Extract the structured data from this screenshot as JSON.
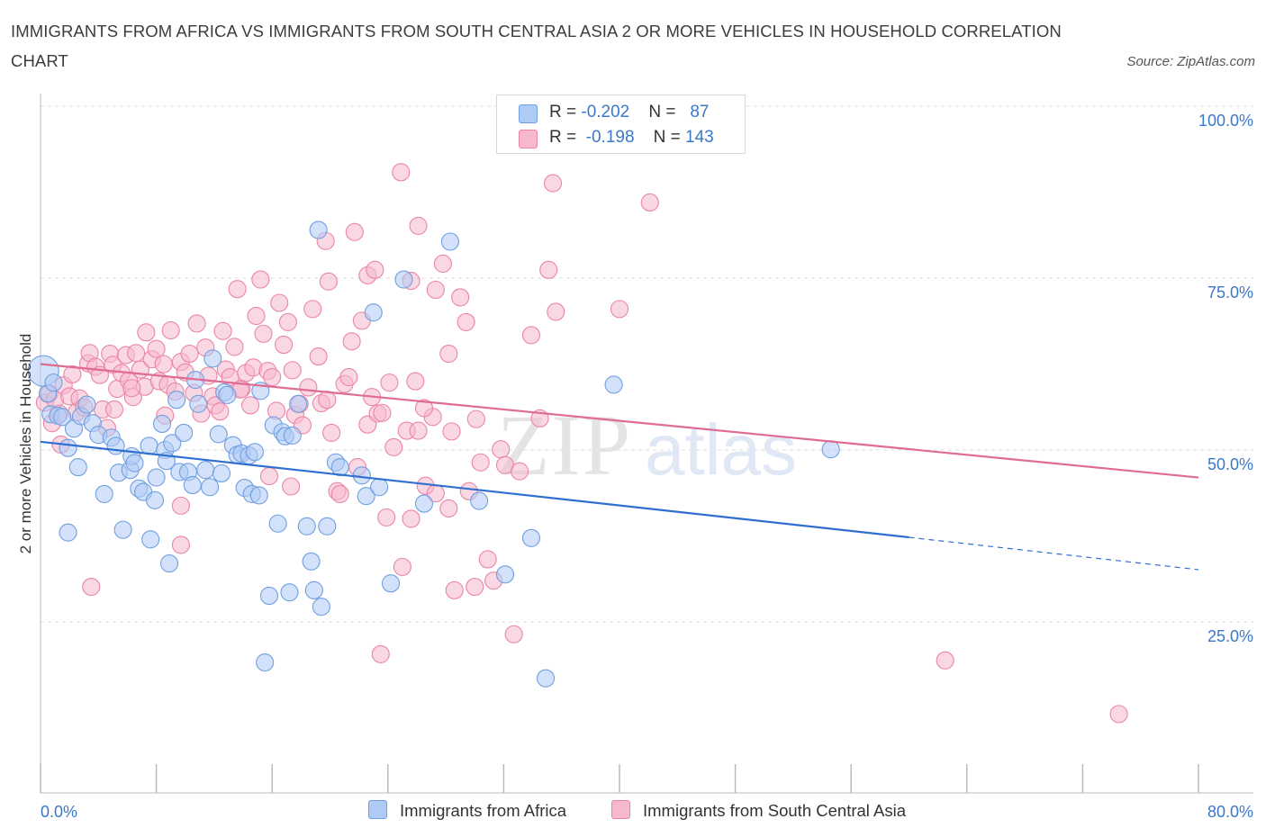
{
  "title": "IMMIGRANTS FROM AFRICA VS IMMIGRANTS FROM SOUTH CENTRAL ASIA 2 OR MORE VEHICLES IN HOUSEHOLD CORRELATION CHART",
  "source": "Source: ZipAtlas.com",
  "watermark": {
    "zip": "ZIP",
    "atlas": "atlas"
  },
  "legend": {
    "rows": [
      {
        "r_label": "R = ",
        "r_value": "-0.202",
        "n_label": "N = ",
        "n_value": "87",
        "color": "#aecbf5"
      },
      {
        "r_label": "R = ",
        "r_value": "-0.198",
        "n_label": "N = ",
        "n_value": "143",
        "color": "#f5b8cc"
      }
    ]
  },
  "chart_data": {
    "type": "scatter",
    "title": "IMMIGRANTS FROM AFRICA VS IMMIGRANTS FROM SOUTH CENTRAL ASIA 2 OR MORE VEHICLES IN HOUSEHOLD CORRELATION CHART",
    "xlabel": "",
    "ylabel": "2 or more Vehicles in Household",
    "xlim": [
      0,
      80
    ],
    "ylim": [
      0,
      100
    ],
    "x_tick_labels": [
      "0.0%",
      "80.0%"
    ],
    "y_ticks": [
      25,
      50,
      75,
      100
    ],
    "y_tick_labels": [
      "25.0%",
      "50.0%",
      "75.0%",
      "100.0%"
    ],
    "grid": true,
    "legend_position": "top-center",
    "series": [
      {
        "name": "Immigrants from Africa",
        "color": "#6f9fe0",
        "fill": "#aecbf5",
        "line_color": "#2f6fd0",
        "trend": {
          "x0": 0,
          "y0": 51.2,
          "x1": 60,
          "y1": 37.3,
          "x_end_dashed": 80,
          "y_end_dashed": 32.6
        },
        "points": [
          [
            0.2,
            61.5
          ],
          [
            0.5,
            58.2
          ],
          [
            0.7,
            55.2
          ],
          [
            0.9,
            59.8
          ],
          [
            1.2,
            55.0
          ],
          [
            1.5,
            54.8
          ],
          [
            1.9,
            50.3
          ],
          [
            2.3,
            53.1
          ],
          [
            2.6,
            47.5
          ],
          [
            1.9,
            38.0
          ],
          [
            2.8,
            54.9
          ],
          [
            3.2,
            56.6
          ],
          [
            3.6,
            53.9
          ],
          [
            4.0,
            52.2
          ],
          [
            4.4,
            43.6
          ],
          [
            4.9,
            51.8
          ],
          [
            5.2,
            50.6
          ],
          [
            5.4,
            46.7
          ],
          [
            5.7,
            38.4
          ],
          [
            6.2,
            47.1
          ],
          [
            6.3,
            49.1
          ],
          [
            6.5,
            48.1
          ],
          [
            6.8,
            44.4
          ],
          [
            7.1,
            43.9
          ],
          [
            7.5,
            50.6
          ],
          [
            7.6,
            37.0
          ],
          [
            7.9,
            42.7
          ],
          [
            8.0,
            46.0
          ],
          [
            8.4,
            53.8
          ],
          [
            8.6,
            50.0
          ],
          [
            8.7,
            48.4
          ],
          [
            8.9,
            33.5
          ],
          [
            9.1,
            51.0
          ],
          [
            9.4,
            57.3
          ],
          [
            9.6,
            46.8
          ],
          [
            9.9,
            52.5
          ],
          [
            10.2,
            46.8
          ],
          [
            10.5,
            44.9
          ],
          [
            10.7,
            60.2
          ],
          [
            10.9,
            56.7
          ],
          [
            11.4,
            47.1
          ],
          [
            11.7,
            44.6
          ],
          [
            11.9,
            63.3
          ],
          [
            12.3,
            52.3
          ],
          [
            12.5,
            46.6
          ],
          [
            12.7,
            58.4
          ],
          [
            12.9,
            58.0
          ],
          [
            13.3,
            50.7
          ],
          [
            13.6,
            49.3
          ],
          [
            13.9,
            49.5
          ],
          [
            14.1,
            44.5
          ],
          [
            14.4,
            49.2
          ],
          [
            14.6,
            43.6
          ],
          [
            14.8,
            49.7
          ],
          [
            15.1,
            43.4
          ],
          [
            15.2,
            58.6
          ],
          [
            15.5,
            19.1
          ],
          [
            15.8,
            28.8
          ],
          [
            16.1,
            53.6
          ],
          [
            16.4,
            39.3
          ],
          [
            16.7,
            52.6
          ],
          [
            16.9,
            52.0
          ],
          [
            17.2,
            29.3
          ],
          [
            17.4,
            52.1
          ],
          [
            17.8,
            56.7
          ],
          [
            18.4,
            38.9
          ],
          [
            18.7,
            33.8
          ],
          [
            18.9,
            29.6
          ],
          [
            19.4,
            27.2
          ],
          [
            19.8,
            38.9
          ],
          [
            20.4,
            48.2
          ],
          [
            20.7,
            47.5
          ],
          [
            22.2,
            46.3
          ],
          [
            22.5,
            43.3
          ],
          [
            23.0,
            70.0
          ],
          [
            23.4,
            44.6
          ],
          [
            24.2,
            30.6
          ],
          [
            25.1,
            74.8
          ],
          [
            26.5,
            42.2
          ],
          [
            28.3,
            80.3
          ],
          [
            30.3,
            42.6
          ],
          [
            32.1,
            31.9
          ],
          [
            33.9,
            37.2
          ],
          [
            34.9,
            16.8
          ],
          [
            39.6,
            59.5
          ],
          [
            19.2,
            82.0
          ],
          [
            54.6,
            50.1
          ]
        ]
      },
      {
        "name": "Immigrants from South Central Asia",
        "color": "#ea85a8",
        "fill": "#f5b8cc",
        "line_color": "#e06b93",
        "trend": {
          "x0": 0,
          "y0": 62.5,
          "x1": 80,
          "y1": 46.0
        },
        "points": [
          [
            0.3,
            56.9
          ],
          [
            0.6,
            58.2
          ],
          [
            0.8,
            53.9
          ],
          [
            1.0,
            57.3
          ],
          [
            1.3,
            55.3
          ],
          [
            1.4,
            50.8
          ],
          [
            1.6,
            59.4
          ],
          [
            2.0,
            57.8
          ],
          [
            2.2,
            61.0
          ],
          [
            2.5,
            55.5
          ],
          [
            2.7,
            57.5
          ],
          [
            3.0,
            56.2
          ],
          [
            3.3,
            62.6
          ],
          [
            3.4,
            64.1
          ],
          [
            3.8,
            62.1
          ],
          [
            4.1,
            60.9
          ],
          [
            4.3,
            55.9
          ],
          [
            4.6,
            53.2
          ],
          [
            4.8,
            64.0
          ],
          [
            5.0,
            62.4
          ],
          [
            5.3,
            58.9
          ],
          [
            5.6,
            61.2
          ],
          [
            5.9,
            63.8
          ],
          [
            6.1,
            60.1
          ],
          [
            6.4,
            57.7
          ],
          [
            6.6,
            64.1
          ],
          [
            6.9,
            61.7
          ],
          [
            7.2,
            59.2
          ],
          [
            7.3,
            67.1
          ],
          [
            7.7,
            63.2
          ],
          [
            8.0,
            64.7
          ],
          [
            8.2,
            60.0
          ],
          [
            8.5,
            62.5
          ],
          [
            8.8,
            59.5
          ],
          [
            9.0,
            67.4
          ],
          [
            9.3,
            58.5
          ],
          [
            9.7,
            62.8
          ],
          [
            10.0,
            61.3
          ],
          [
            10.3,
            64.0
          ],
          [
            10.6,
            58.3
          ],
          [
            10.8,
            68.4
          ],
          [
            11.1,
            55.3
          ],
          [
            11.4,
            64.9
          ],
          [
            11.6,
            60.8
          ],
          [
            11.9,
            57.8
          ],
          [
            12.1,
            56.5
          ],
          [
            12.4,
            55.6
          ],
          [
            12.6,
            67.3
          ],
          [
            12.8,
            61.7
          ],
          [
            13.1,
            60.6
          ],
          [
            13.4,
            65.0
          ],
          [
            13.6,
            73.4
          ],
          [
            13.9,
            58.9
          ],
          [
            14.2,
            61.2
          ],
          [
            14.5,
            56.5
          ],
          [
            14.7,
            62.0
          ],
          [
            14.9,
            69.5
          ],
          [
            15.2,
            74.8
          ],
          [
            15.4,
            66.9
          ],
          [
            15.7,
            61.5
          ],
          [
            16.0,
            60.6
          ],
          [
            16.3,
            55.7
          ],
          [
            16.5,
            71.4
          ],
          [
            16.8,
            65.3
          ],
          [
            17.1,
            68.6
          ],
          [
            17.4,
            61.6
          ],
          [
            17.6,
            55.1
          ],
          [
            17.9,
            56.7
          ],
          [
            18.1,
            53.6
          ],
          [
            18.5,
            59.1
          ],
          [
            18.8,
            70.5
          ],
          [
            19.2,
            63.6
          ],
          [
            19.4,
            56.8
          ],
          [
            19.8,
            57.3
          ],
          [
            20.1,
            52.5
          ],
          [
            20.5,
            44.0
          ],
          [
            20.7,
            43.6
          ],
          [
            21.0,
            59.6
          ],
          [
            21.3,
            60.6
          ],
          [
            21.5,
            65.8
          ],
          [
            21.9,
            47.5
          ],
          [
            22.2,
            68.8
          ],
          [
            22.6,
            53.7
          ],
          [
            22.9,
            57.7
          ],
          [
            23.3,
            55.3
          ],
          [
            23.6,
            55.4
          ],
          [
            24.1,
            59.8
          ],
          [
            24.4,
            50.4
          ],
          [
            25.0,
            33.0
          ],
          [
            25.3,
            52.8
          ],
          [
            25.6,
            74.6
          ],
          [
            25.9,
            60.0
          ],
          [
            26.1,
            52.8
          ],
          [
            26.6,
            44.8
          ],
          [
            27.1,
            54.8
          ],
          [
            27.3,
            73.3
          ],
          [
            27.8,
            77.1
          ],
          [
            28.2,
            41.5
          ],
          [
            28.6,
            29.6
          ],
          [
            29.0,
            72.2
          ],
          [
            29.4,
            68.6
          ],
          [
            29.6,
            44.0
          ],
          [
            30.0,
            30.1
          ],
          [
            30.4,
            48.2
          ],
          [
            30.9,
            34.1
          ],
          [
            31.3,
            31.0
          ],
          [
            31.8,
            50.1
          ],
          [
            32.1,
            47.8
          ],
          [
            32.7,
            23.2
          ],
          [
            33.1,
            46.9
          ],
          [
            33.9,
            66.7
          ],
          [
            34.5,
            54.6
          ],
          [
            35.1,
            76.2
          ],
          [
            35.6,
            70.1
          ],
          [
            40.0,
            70.5
          ],
          [
            42.1,
            86.0
          ],
          [
            24.9,
            90.4
          ],
          [
            26.1,
            82.6
          ],
          [
            35.4,
            88.8
          ],
          [
            22.6,
            75.4
          ],
          [
            23.1,
            76.2
          ],
          [
            19.7,
            80.4
          ],
          [
            21.7,
            81.7
          ],
          [
            19.9,
            74.5
          ],
          [
            13.8,
            58.8
          ],
          [
            9.7,
            36.2
          ],
          [
            3.5,
            30.1
          ],
          [
            9.7,
            41.9
          ],
          [
            23.5,
            20.3
          ],
          [
            62.5,
            19.4
          ],
          [
            74.5,
            11.6
          ],
          [
            15.8,
            46.2
          ],
          [
            17.3,
            44.7
          ],
          [
            26.5,
            56.1
          ],
          [
            30.1,
            54.5
          ],
          [
            23.9,
            40.2
          ],
          [
            25.6,
            40.0
          ],
          [
            28.4,
            52.7
          ],
          [
            27.3,
            43.7
          ],
          [
            28.2,
            64.0
          ],
          [
            8.6,
            55.0
          ],
          [
            6.3,
            59.0
          ],
          [
            5.1,
            55.9
          ]
        ]
      }
    ]
  },
  "bottom_legend": [
    {
      "label": "Immigrants from Africa",
      "color": "#aecbf5"
    },
    {
      "label": "Immigrants from South Central Asia",
      "color": "#f5b8cc"
    }
  ]
}
